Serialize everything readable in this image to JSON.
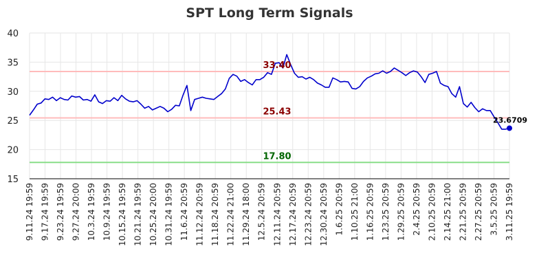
{
  "chart_data": {
    "type": "line",
    "title": "SPT Long Term Signals",
    "xlabel": "",
    "ylabel": "",
    "ylim": [
      15,
      40
    ],
    "yticks": [
      "15",
      "20",
      "25",
      "30",
      "35",
      "40"
    ],
    "xticks": [
      "9.11.24 19:59",
      "9.17.24 19:59",
      "9.23.24 19:59",
      "9.27.24 20:00",
      "10.3.24 19:59",
      "10.9.24 19:59",
      "10.15.24 19:59",
      "10.21.24 19:59",
      "10.25.24 20:00",
      "10.31.24 19:59",
      "11.6.24 20:59",
      "11.12.24 20:59",
      "11.18.24 20:59",
      "11.22.24 21:00",
      "11.29.24 18:00",
      "12.5.24 20:59",
      "12.11.24 20:59",
      "12.17.24 20:59",
      "12.23.24 20:59",
      "12.30.24 20:59",
      "1.6.25 20:59",
      "1.10.25 21:00",
      "1.16.25 20:59",
      "1.23.25 20:59",
      "1.29.25 20:59",
      "2.4.25 20:59",
      "2.10.25 20:59",
      "2.14.25 21:00",
      "2.21.25 20:59",
      "2.27.25 20:59",
      "3.5.25 20:59",
      "3.11.25 19:59"
    ],
    "grid": true,
    "series": [
      {
        "name": "",
        "color": "#0000cc",
        "values": [
          25.9,
          26.8,
          27.8,
          28.0,
          28.7,
          28.6,
          29.0,
          28.4,
          28.9,
          28.6,
          28.5,
          29.2,
          29.0,
          29.1,
          28.5,
          28.6,
          28.3,
          29.4,
          28.2,
          27.9,
          28.4,
          28.3,
          28.9,
          28.4,
          29.3,
          28.7,
          28.3,
          28.2,
          28.4,
          27.8,
          27.1,
          27.4,
          26.8,
          27.1,
          27.4,
          27.1,
          26.5,
          26.9,
          27.6,
          27.5,
          29.4,
          31.0,
          26.7,
          28.6,
          28.8,
          29.0,
          28.8,
          28.7,
          28.6,
          29.1,
          29.6,
          30.4,
          32.2,
          32.9,
          32.6,
          31.7,
          32.0,
          31.5,
          31.1,
          32.0,
          32.0,
          32.4,
          33.2,
          32.9,
          34.8,
          34.9,
          34.0,
          36.3,
          34.6,
          33.1,
          32.4,
          32.5,
          32.1,
          32.4,
          32.0,
          31.4,
          31.1,
          30.7,
          30.7,
          32.3,
          32.0,
          31.6,
          31.7,
          31.6,
          30.5,
          30.4,
          30.8,
          31.7,
          32.3,
          32.6,
          33.0,
          33.1,
          33.5,
          33.1,
          33.4,
          34.0,
          33.6,
          33.2,
          32.7,
          33.2,
          33.5,
          33.3,
          32.5,
          31.5,
          32.9,
          33.1,
          33.4,
          31.4,
          31.0,
          30.8,
          29.6,
          29.0,
          30.8,
          27.9,
          27.3,
          28.1,
          27.2,
          26.5,
          27.0,
          26.7,
          26.7,
          25.6,
          24.6,
          23.5,
          23.5,
          23.6709
        ]
      }
    ],
    "reference_lines": [
      {
        "value": 33.4,
        "label": "33.40",
        "line_color": "#ffbbbb",
        "label_color": "#8b0000"
      },
      {
        "value": 25.43,
        "label": "25.43",
        "line_color": "#ffbbbb",
        "label_color": "#8b0000"
      },
      {
        "value": 17.8,
        "label": "17.80",
        "line_color": "#88dd88",
        "label_color": "#006400"
      }
    ],
    "last_value": {
      "value": 23.6709,
      "label": "23.6709",
      "marker_color": "#0000cc"
    }
  }
}
